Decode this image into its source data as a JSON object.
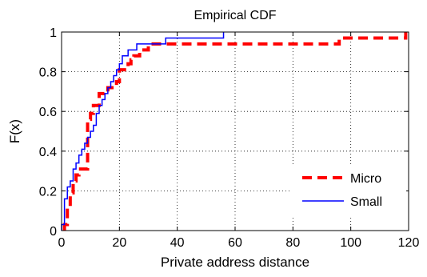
{
  "chart_data": {
    "type": "line",
    "title": "Empirical CDF",
    "xlabel": "Private address distance",
    "ylabel": "F(x)",
    "xlim": [
      0,
      120
    ],
    "ylim": [
      0,
      1
    ],
    "x_ticks": [
      0,
      20,
      40,
      60,
      80,
      100,
      120
    ],
    "y_ticks": [
      0,
      0.2,
      0.4,
      0.6,
      0.8,
      1
    ],
    "x_tick_labels": [
      "0",
      "20",
      "40",
      "60",
      "80",
      "100",
      "120"
    ],
    "y_tick_labels": [
      "0",
      "0.2",
      "0.4",
      "0.6",
      "0.8",
      "1"
    ],
    "grid": true,
    "legend_position": "bottom-right",
    "series": [
      {
        "name": "Micro",
        "color": "#ff0000",
        "style": "dashed",
        "x": [
          1,
          2,
          3,
          4,
          5,
          6,
          9,
          10,
          11,
          13,
          16,
          19,
          20,
          23,
          24,
          25,
          27,
          28,
          30,
          37,
          56,
          96,
          97,
          119
        ],
        "y": [
          0.03,
          0.12,
          0.19,
          0.25,
          0.28,
          0.31,
          0.56,
          0.59,
          0.63,
          0.69,
          0.72,
          0.75,
          0.81,
          0.84,
          0.86,
          0.88,
          0.91,
          0.91,
          0.94,
          0.94,
          0.94,
          0.97,
          0.97,
          1.0
        ]
      },
      {
        "name": "Small",
        "color": "#0000ff",
        "style": "solid",
        "x": [
          0,
          1,
          2,
          3,
          4,
          5,
          6,
          7,
          8,
          9,
          10,
          11,
          12,
          13,
          14,
          15,
          16,
          17,
          18,
          19,
          20,
          21,
          22,
          23,
          24,
          25,
          26,
          27,
          28,
          36,
          56
        ],
        "y": [
          0.03,
          0.16,
          0.22,
          0.25,
          0.31,
          0.34,
          0.38,
          0.41,
          0.44,
          0.47,
          0.5,
          0.53,
          0.59,
          0.63,
          0.66,
          0.69,
          0.72,
          0.75,
          0.78,
          0.81,
          0.84,
          0.88,
          0.88,
          0.91,
          0.91,
          0.91,
          0.94,
          0.94,
          0.94,
          0.97,
          1.0
        ]
      }
    ]
  }
}
